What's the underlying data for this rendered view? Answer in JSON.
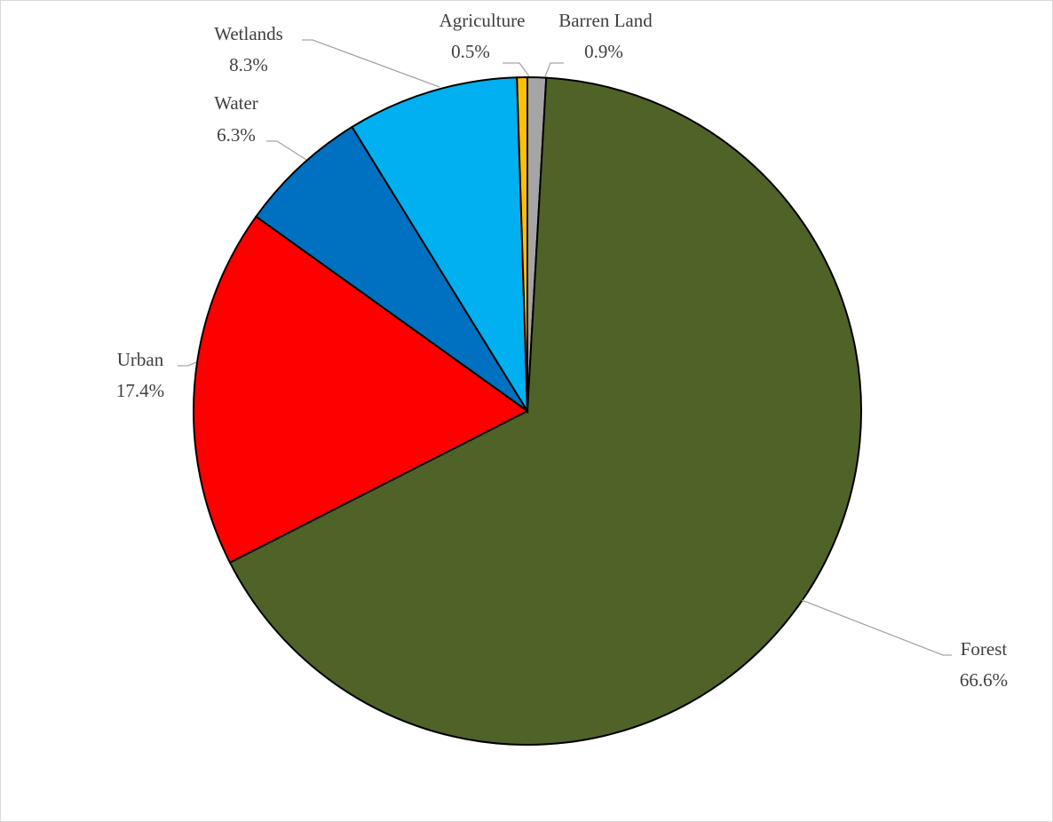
{
  "chart_data": {
    "type": "pie",
    "title": "",
    "legend": "none",
    "slices": [
      {
        "label": "Barren Land",
        "value": 0.9,
        "display": "0.9%",
        "color": "#a5a5a5"
      },
      {
        "label": "Forest",
        "value": 66.6,
        "display": "66.6%",
        "color": "#4f6228"
      },
      {
        "label": "Urban",
        "value": 17.4,
        "display": "17.4%",
        "color": "#ff0000"
      },
      {
        "label": "Water",
        "value": 6.3,
        "display": "6.3%",
        "color": "#0070c0"
      },
      {
        "label": "Wetlands",
        "value": 8.3,
        "display": "8.3%",
        "color": "#00b0f0"
      },
      {
        "label": "Agriculture",
        "value": 0.5,
        "display": "0.5%",
        "color": "#ffc000"
      }
    ]
  }
}
